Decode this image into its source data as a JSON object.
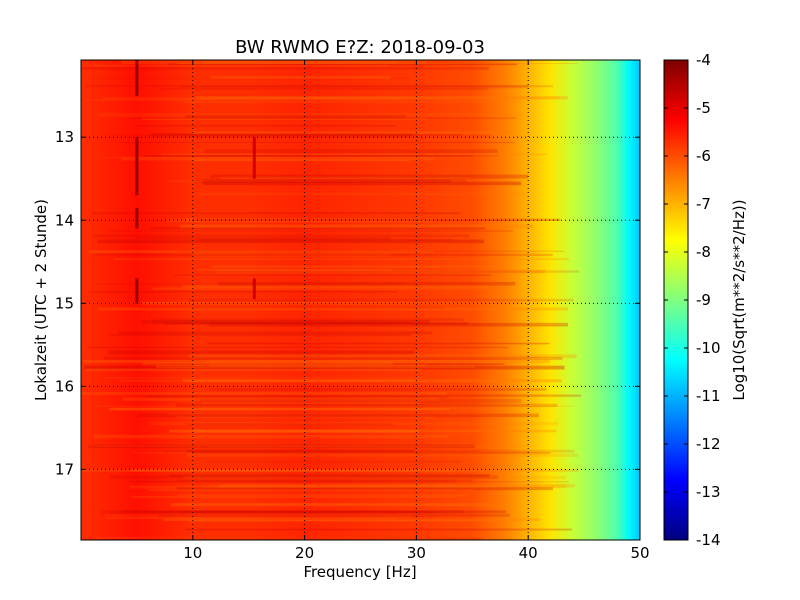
{
  "chart_data": {
    "type": "heatmap",
    "title": "BW RWMO E?Z: 2018-09-03",
    "xlabel": "Frequency [Hz]",
    "ylabel": "Lokalzeit (UTC + 2 Stunde)",
    "xlim": [
      0,
      50
    ],
    "ylim": [
      12.07,
      17.85
    ],
    "y_inverted": true,
    "grid": true,
    "x_ticks": [
      10,
      20,
      30,
      40,
      50
    ],
    "y_ticks": [
      13,
      14,
      15,
      16,
      17
    ],
    "colorbar": {
      "label": "Log10(Sqrt(m**2/s**2/Hz))",
      "colormap": "jet",
      "vmin": -14,
      "vmax": -4,
      "ticks": [
        -4,
        -5,
        -6,
        -7,
        -8,
        -9,
        -10,
        -11,
        -12,
        -13,
        -14
      ]
    },
    "profile_by_frequency": {
      "freq_hz": [
        0,
        5,
        10,
        15,
        20,
        25,
        30,
        35,
        38,
        40,
        42,
        44,
        46,
        48,
        49,
        50
      ],
      "log10_amplitude": [
        -5.7,
        -5.4,
        -5.7,
        -5.7,
        -5.6,
        -5.7,
        -5.8,
        -6.0,
        -6.5,
        -7.0,
        -7.5,
        -8.3,
        -8.8,
        -9.5,
        -10.3,
        -10.8
      ]
    },
    "annotations": [
      {
        "freq_hz": 5,
        "time_h": [
          12.07,
          12.5
        ],
        "log10_amplitude": -4.3
      },
      {
        "freq_hz": 5,
        "time_h": [
          13.0,
          13.7
        ],
        "log10_amplitude": -4.3
      },
      {
        "freq_hz": 5,
        "time_h": [
          13.85,
          14.1
        ],
        "log10_amplitude": -4.3
      },
      {
        "freq_hz": 5,
        "time_h": [
          14.7,
          15.0
        ],
        "log10_amplitude": -4.3
      },
      {
        "freq_hz": 15.5,
        "time_h": [
          13.0,
          13.5
        ],
        "log10_amplitude": -4.8
      },
      {
        "freq_hz": 15.5,
        "time_h": [
          14.7,
          14.95
        ],
        "log10_amplitude": -4.8
      }
    ]
  }
}
